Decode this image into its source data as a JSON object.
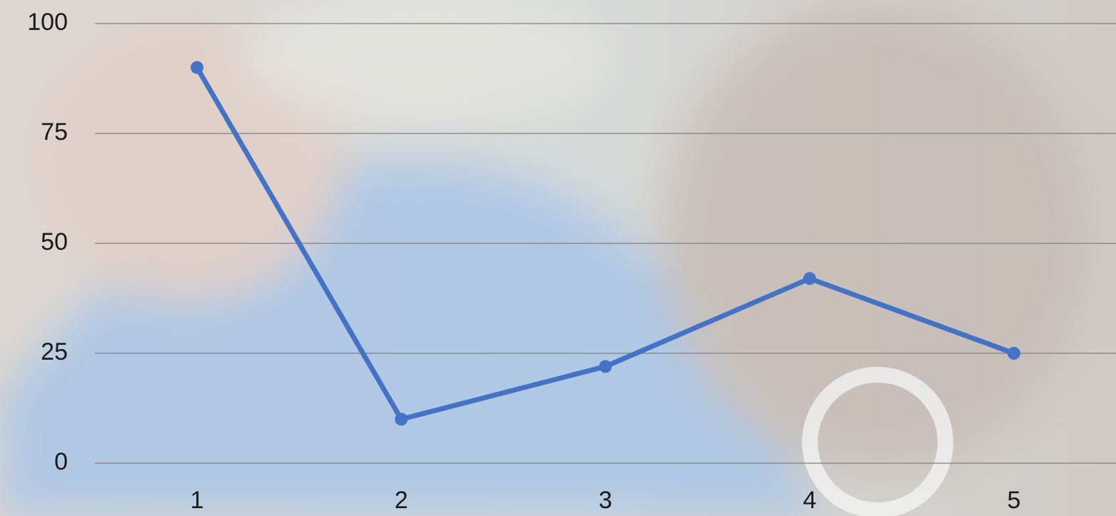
{
  "chart_data": {
    "type": "line",
    "categories": [
      "1",
      "2",
      "3",
      "4",
      "5"
    ],
    "values": [
      90,
      10,
      22,
      42,
      25
    ],
    "color": "#4472c4",
    "ylim": [
      0,
      100
    ],
    "yticks": [
      0,
      25,
      50,
      75,
      100
    ],
    "grid": true
  }
}
